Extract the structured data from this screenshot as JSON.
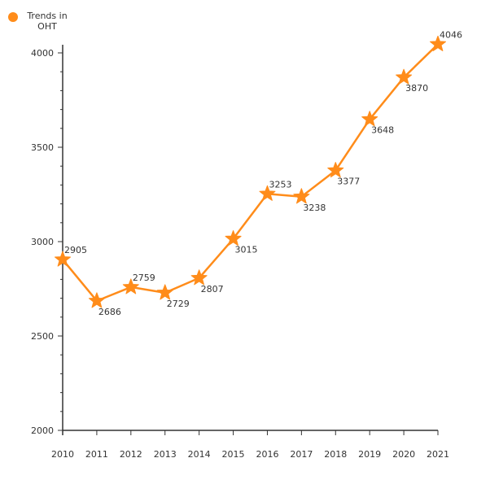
{
  "chart_data": {
    "type": "line",
    "title": "",
    "xlabel": "",
    "ylabel": "",
    "x": [
      "2010",
      "2011",
      "2012",
      "2013",
      "2014",
      "2015",
      "2016",
      "2017",
      "2018",
      "2019",
      "2020",
      "2021"
    ],
    "series": [
      {
        "name": "Trends in OHT",
        "values": [
          2905,
          2686,
          2759,
          2729,
          2807,
          3015,
          3253,
          3238,
          3377,
          3648,
          3870,
          4046
        ],
        "marker": "star",
        "color": "#ff8c1a"
      }
    ],
    "ylim": [
      2000,
      4000
    ],
    "yticks": [
      2000,
      2500,
      3000,
      3500,
      4000
    ],
    "grid": false,
    "legend_position": "top-left"
  },
  "legend": {
    "label_line1": "Trends in",
    "label_line2": "OHT"
  },
  "colors": {
    "series": "#ff8c1a",
    "axis": "#333333",
    "text": "#333333"
  }
}
